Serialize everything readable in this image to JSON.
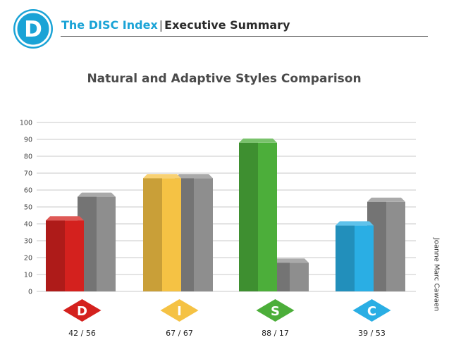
{
  "header": {
    "logo_letter": "D",
    "brand": "The DISC Index",
    "separator": "|",
    "section": "Executive Summary"
  },
  "side_credit": "Joanne Marc Cawaen",
  "chart_data": {
    "type": "bar",
    "title": "Natural and Adaptive Styles Comparison",
    "xlabel": "",
    "ylabel": "",
    "ylim": [
      0,
      100
    ],
    "yticks": [
      0,
      10,
      20,
      30,
      40,
      50,
      60,
      70,
      80,
      90,
      100
    ],
    "grid": true,
    "categories": [
      "D",
      "I",
      "S",
      "C"
    ],
    "category_labels": [
      "42 / 56",
      "67 / 67",
      "88 / 17",
      "39 / 53"
    ],
    "series": [
      {
        "values": [
          42,
          67,
          88,
          39
        ]
      },
      {
        "values": [
          56,
          67,
          17,
          53
        ]
      }
    ],
    "category_colors": [
      "#d4211e",
      "#f5c244",
      "#4cae3a",
      "#2aaee4"
    ],
    "second_series_color": "#8e8e8e"
  }
}
